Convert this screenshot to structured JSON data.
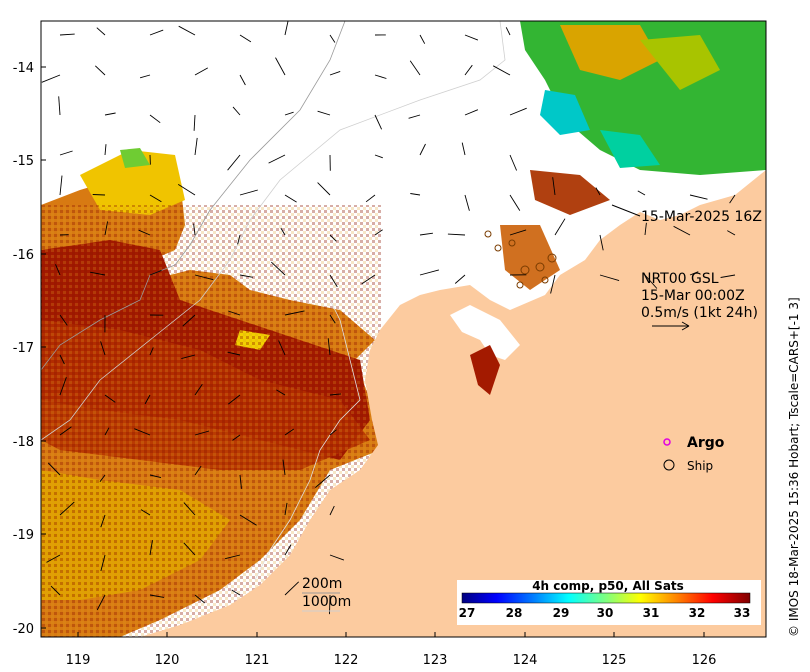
{
  "map": {
    "x_ticks": [
      "119",
      "120",
      "121",
      "122",
      "123",
      "124",
      "125",
      "126"
    ],
    "y_ticks": [
      "-14",
      "-15",
      "-16",
      "-17",
      "-18",
      "-19",
      "-20"
    ],
    "x_range": [
      118.6,
      126.7
    ],
    "y_range": [
      -20.1,
      -13.5
    ]
  },
  "annotations": {
    "sst_time": "15-Mar-2025 16Z",
    "current_product": "NRT00 GSL",
    "current_time": "15-Mar 00:00Z",
    "current_scale": "0.5m/s (1kt 24h)",
    "isobath_200": "200m",
    "isobath_1000": "1000m",
    "credit": "© IMOS 18-Mar-2025 15:36 Hobart; Tscale=CARS+[-1 3]"
  },
  "legend": {
    "argo_label": "Argo",
    "ship_label": "Ship",
    "argo_color": "#e000e0"
  },
  "colorbar": {
    "title": "4h comp, p50, All Sats",
    "ticks": [
      "27",
      "28",
      "29",
      "30",
      "31",
      "32",
      "33"
    ],
    "colors": [
      "#00007f",
      "#0000ff",
      "#007fff",
      "#00ffff",
      "#7fff7f",
      "#ffff00",
      "#ff7f00",
      "#ff0000",
      "#7f0000"
    ]
  },
  "colors": {
    "land": "#fccb9f",
    "sst_hot": "#a31a00",
    "sst_warm": "#d2691e",
    "sst_orange": "#e8a300",
    "sst_yellow": "#f2d000",
    "sst_green": "#33cc33",
    "sst_cyan": "#00cccc"
  }
}
